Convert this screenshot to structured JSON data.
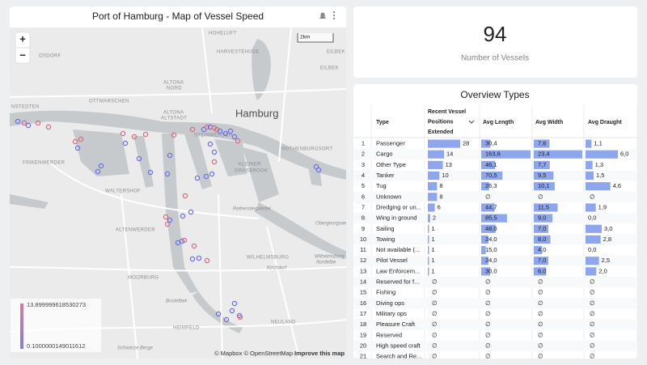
{
  "map": {
    "title": "Port of Hamburg - Map of Vessel Speed",
    "zoom_in": "+",
    "zoom_out": "−",
    "scale": "2km",
    "labels": [
      "OSDORF",
      "HOHELUFT",
      "HARVESTEHUDE",
      "EILBEK",
      "ALTONA",
      "NORD",
      "OTTMARSCHEN",
      "ALTONA",
      "ALTSTADT",
      "NSTEDTEN",
      "Hamburg",
      "STEINWERDER",
      "ROTHENBURGSORT",
      "FINKENWERDER",
      "KLEINER",
      "GRASBROOK",
      "WALTERSHOF",
      "Reiherstiegviertel",
      "ALTENWERDER",
      "WILHELMSBURG",
      "Kirchdorf",
      "Obergeorgswerder",
      "Wilhelmsburg",
      "Nordelbe",
      "MOORBURG",
      "Bostelbek",
      "HEIMFELD",
      "NEULAND",
      "Schwarze Berge",
      "EILBEK"
    ],
    "legend": {
      "max": 13.899999618530273,
      "min": 0.1000000149011612
    },
    "attribution": "© Mapbox © OpenStreetMap",
    "improve": "Improve this map"
  },
  "scorecard": {
    "value": 94,
    "label": "Number of Vessels"
  },
  "table": {
    "title": "Overview Types",
    "columns": [
      "Type",
      "Recent Vessel Positions Extended",
      "Avg Length",
      "Avg Width",
      "Avg Draught"
    ],
    "rows": [
      {
        "n": 1,
        "type": "Passenger",
        "positions": 28,
        "length": {
          "value": 30.4,
          "label": "30,4"
        },
        "width": {
          "value": 7.6,
          "label": "7,6"
        },
        "draught": {
          "value": 1.1,
          "label": "1,1"
        }
      },
      {
        "n": 2,
        "type": "Cargo",
        "positions": 14,
        "length": {
          "value": 163.6,
          "label": "163,6"
        },
        "width": {
          "value": 23.4,
          "label": "23,4"
        },
        "draught": {
          "value": 6.0,
          "label": "6,0"
        }
      },
      {
        "n": 3,
        "type": "Other Type",
        "positions": 13,
        "length": {
          "value": 46.1,
          "label": "46,1"
        },
        "width": {
          "value": 7.7,
          "label": "7,7"
        },
        "draught": {
          "value": 1.3,
          "label": "1,3"
        }
      },
      {
        "n": 4,
        "type": "Tanker",
        "positions": 10,
        "length": {
          "value": 70.5,
          "label": "70,5"
        },
        "width": {
          "value": 9.5,
          "label": "9,5"
        },
        "draught": {
          "value": 1.5,
          "label": "1,5"
        }
      },
      {
        "n": 5,
        "type": "Tug",
        "positions": 8,
        "length": {
          "value": 26.3,
          "label": "26,3"
        },
        "width": {
          "value": 10.1,
          "label": "10,1"
        },
        "draught": {
          "value": 4.6,
          "label": "4,6"
        }
      },
      {
        "n": 6,
        "type": "Unknown",
        "positions": 8,
        "length": {
          "value": null,
          "label": "∅"
        },
        "width": {
          "value": null,
          "label": "∅"
        },
        "draught": {
          "value": null,
          "label": "∅"
        }
      },
      {
        "n": 7,
        "type": "Dredging or un...",
        "positions": 6,
        "length": {
          "value": 44.7,
          "label": "44,7"
        },
        "width": {
          "value": 11.5,
          "label": "11,5"
        },
        "draught": {
          "value": 1.9,
          "label": "1,9"
        }
      },
      {
        "n": 8,
        "type": "Wing in ground",
        "positions": 2,
        "length": {
          "value": 85.5,
          "label": "85,5"
        },
        "width": {
          "value": 9.0,
          "label": "9,0"
        },
        "draught": {
          "value": 0.0,
          "label": "0,0"
        }
      },
      {
        "n": 9,
        "type": "Sailing",
        "positions": 1,
        "length": {
          "value": 48.0,
          "label": "48,0"
        },
        "width": {
          "value": 7.0,
          "label": "7,0"
        },
        "draught": {
          "value": 3.0,
          "label": "3,0"
        }
      },
      {
        "n": 10,
        "type": "Towing",
        "positions": 1,
        "length": {
          "value": 24.0,
          "label": "24,0"
        },
        "width": {
          "value": 8.0,
          "label": "8,0"
        },
        "draught": {
          "value": 2.8,
          "label": "2,8"
        }
      },
      {
        "n": 11,
        "type": "Not available (...",
        "positions": 1,
        "length": {
          "value": 15.0,
          "label": "15,0"
        },
        "width": {
          "value": 4.0,
          "label": "4,0"
        },
        "draught": {
          "value": 0.0,
          "label": "0,0"
        }
      },
      {
        "n": 12,
        "type": "Pilot Vessel",
        "positions": 1,
        "length": {
          "value": 24.0,
          "label": "24,0"
        },
        "width": {
          "value": 7.0,
          "label": "7,0"
        },
        "draught": {
          "value": 2.5,
          "label": "2,5"
        }
      },
      {
        "n": 13,
        "type": "Law Enforcem...",
        "positions": 1,
        "length": {
          "value": 30.0,
          "label": "30,0"
        },
        "width": {
          "value": 6.0,
          "label": "6,0"
        },
        "draught": {
          "value": 2.0,
          "label": "2,0"
        }
      },
      {
        "n": 14,
        "type": "Reserved for f...",
        "positions": {
          "value": null,
          "label": "∅"
        },
        "length": {
          "value": null,
          "label": "∅"
        },
        "width": {
          "value": null,
          "label": "∅"
        },
        "draught": {
          "value": null,
          "label": "∅"
        }
      },
      {
        "n": 15,
        "type": "Fishing",
        "positions": {
          "value": null,
          "label": "∅"
        },
        "length": {
          "value": null,
          "label": "∅"
        },
        "width": {
          "value": null,
          "label": "∅"
        },
        "draught": {
          "value": null,
          "label": "∅"
        }
      },
      {
        "n": 16,
        "type": "Diving ops",
        "positions": {
          "value": null,
          "label": "∅"
        },
        "length": {
          "value": null,
          "label": "∅"
        },
        "width": {
          "value": null,
          "label": "∅"
        },
        "draught": {
          "value": null,
          "label": "∅"
        }
      },
      {
        "n": 17,
        "type": "Military ops",
        "positions": {
          "value": null,
          "label": "∅"
        },
        "length": {
          "value": null,
          "label": "∅"
        },
        "width": {
          "value": null,
          "label": "∅"
        },
        "draught": {
          "value": null,
          "label": "∅"
        }
      },
      {
        "n": 18,
        "type": "Pleasure Craft",
        "positions": {
          "value": null,
          "label": "∅"
        },
        "length": {
          "value": null,
          "label": "∅"
        },
        "width": {
          "value": null,
          "label": "∅"
        },
        "draught": {
          "value": null,
          "label": "∅"
        }
      },
      {
        "n": 19,
        "type": "Reserved",
        "positions": {
          "value": null,
          "label": "∅"
        },
        "length": {
          "value": null,
          "label": "∅"
        },
        "width": {
          "value": null,
          "label": "∅"
        },
        "draught": {
          "value": null,
          "label": "∅"
        }
      },
      {
        "n": 20,
        "type": "High speed craft",
        "positions": {
          "value": null,
          "label": "∅"
        },
        "length": {
          "value": null,
          "label": "∅"
        },
        "width": {
          "value": null,
          "label": "∅"
        },
        "draught": {
          "value": null,
          "label": "∅"
        }
      },
      {
        "n": 21,
        "type": "Search and Re...",
        "positions": {
          "value": null,
          "label": "∅"
        },
        "length": {
          "value": null,
          "label": "∅"
        },
        "width": {
          "value": null,
          "label": "∅"
        },
        "draught": {
          "value": null,
          "label": "∅"
        }
      }
    ]
  }
}
